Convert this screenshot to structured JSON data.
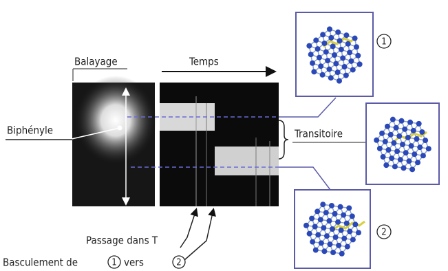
{
  "labels": {
    "balayage": "Balayage",
    "temps": "Temps",
    "biphenyle": "Biphényle",
    "transitoire": "Transitoire",
    "passage": "Passage dans T",
    "basculement": "Basculement de",
    "vers": "vers"
  },
  "states": [
    {
      "label": "1"
    },
    {
      "label": "2"
    }
  ]
}
